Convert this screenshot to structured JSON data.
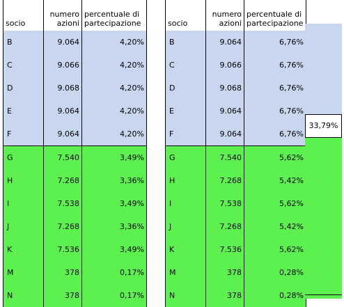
{
  "headers": {
    "socio": "socio",
    "numero_azioni_line1": "numero",
    "numero_azioni_line2": "azioni",
    "percentuale_line1": "percentuale di",
    "percentuale_line2": "partecipazione"
  },
  "left_table": {
    "rows": [
      {
        "socio": "B",
        "azioni": "9.064",
        "percentuale": "4,20%"
      },
      {
        "socio": "C",
        "azioni": "9.066",
        "percentuale": "4,20%"
      },
      {
        "socio": "D",
        "azioni": "9.068",
        "percentuale": "4,20%"
      },
      {
        "socio": "E",
        "azioni": "9.064",
        "percentuale": "4,20%"
      },
      {
        "socio": "F",
        "azioni": "9.064",
        "percentuale": "4,20%"
      },
      {
        "socio": "G",
        "azioni": "7.540",
        "percentuale": "3,49%"
      },
      {
        "socio": "H",
        "azioni": "7.268",
        "percentuale": "3,36%"
      },
      {
        "socio": "I",
        "azioni": "7.538",
        "percentuale": "3,49%"
      },
      {
        "socio": "J",
        "azioni": "7.268",
        "percentuale": "3,36%"
      },
      {
        "socio": "K",
        "azioni": "7.536",
        "percentuale": "3,49%"
      },
      {
        "socio": "M",
        "azioni": "378",
        "percentuale": "0,17%"
      },
      {
        "socio": "N",
        "azioni": "378",
        "percentuale": "0,17%"
      }
    ]
  },
  "right_table": {
    "rows": [
      {
        "socio": "B",
        "azioni": "9.064",
        "percentuale": "6,76%"
      },
      {
        "socio": "C",
        "azioni": "9.066",
        "percentuale": "6,76%"
      },
      {
        "socio": "D",
        "azioni": "9.068",
        "percentuale": "6,76%"
      },
      {
        "socio": "E",
        "azioni": "9.064",
        "percentuale": "6,76%"
      },
      {
        "socio": "F",
        "azioni": "9.064",
        "percentuale": "6,76%"
      },
      {
        "socio": "G",
        "azioni": "7.540",
        "percentuale": "5,62%"
      },
      {
        "socio": "H",
        "azioni": "7.268",
        "percentuale": "5,42%"
      },
      {
        "socio": "I",
        "azioni": "7.538",
        "percentuale": "5,62%"
      },
      {
        "socio": "J",
        "azioni": "7.268",
        "percentuale": "5,42%"
      },
      {
        "socio": "K",
        "azioni": "7.536",
        "percentuale": "5,62%"
      },
      {
        "socio": "M",
        "azioni": "378",
        "percentuale": "0,28%"
      },
      {
        "socio": "N",
        "azioni": "378",
        "percentuale": "0,28%"
      }
    ]
  },
  "group_total": "33,79%",
  "colors": {
    "group_a_fill": "#c8d6f0",
    "group_b_fill": "#5cf14f"
  }
}
